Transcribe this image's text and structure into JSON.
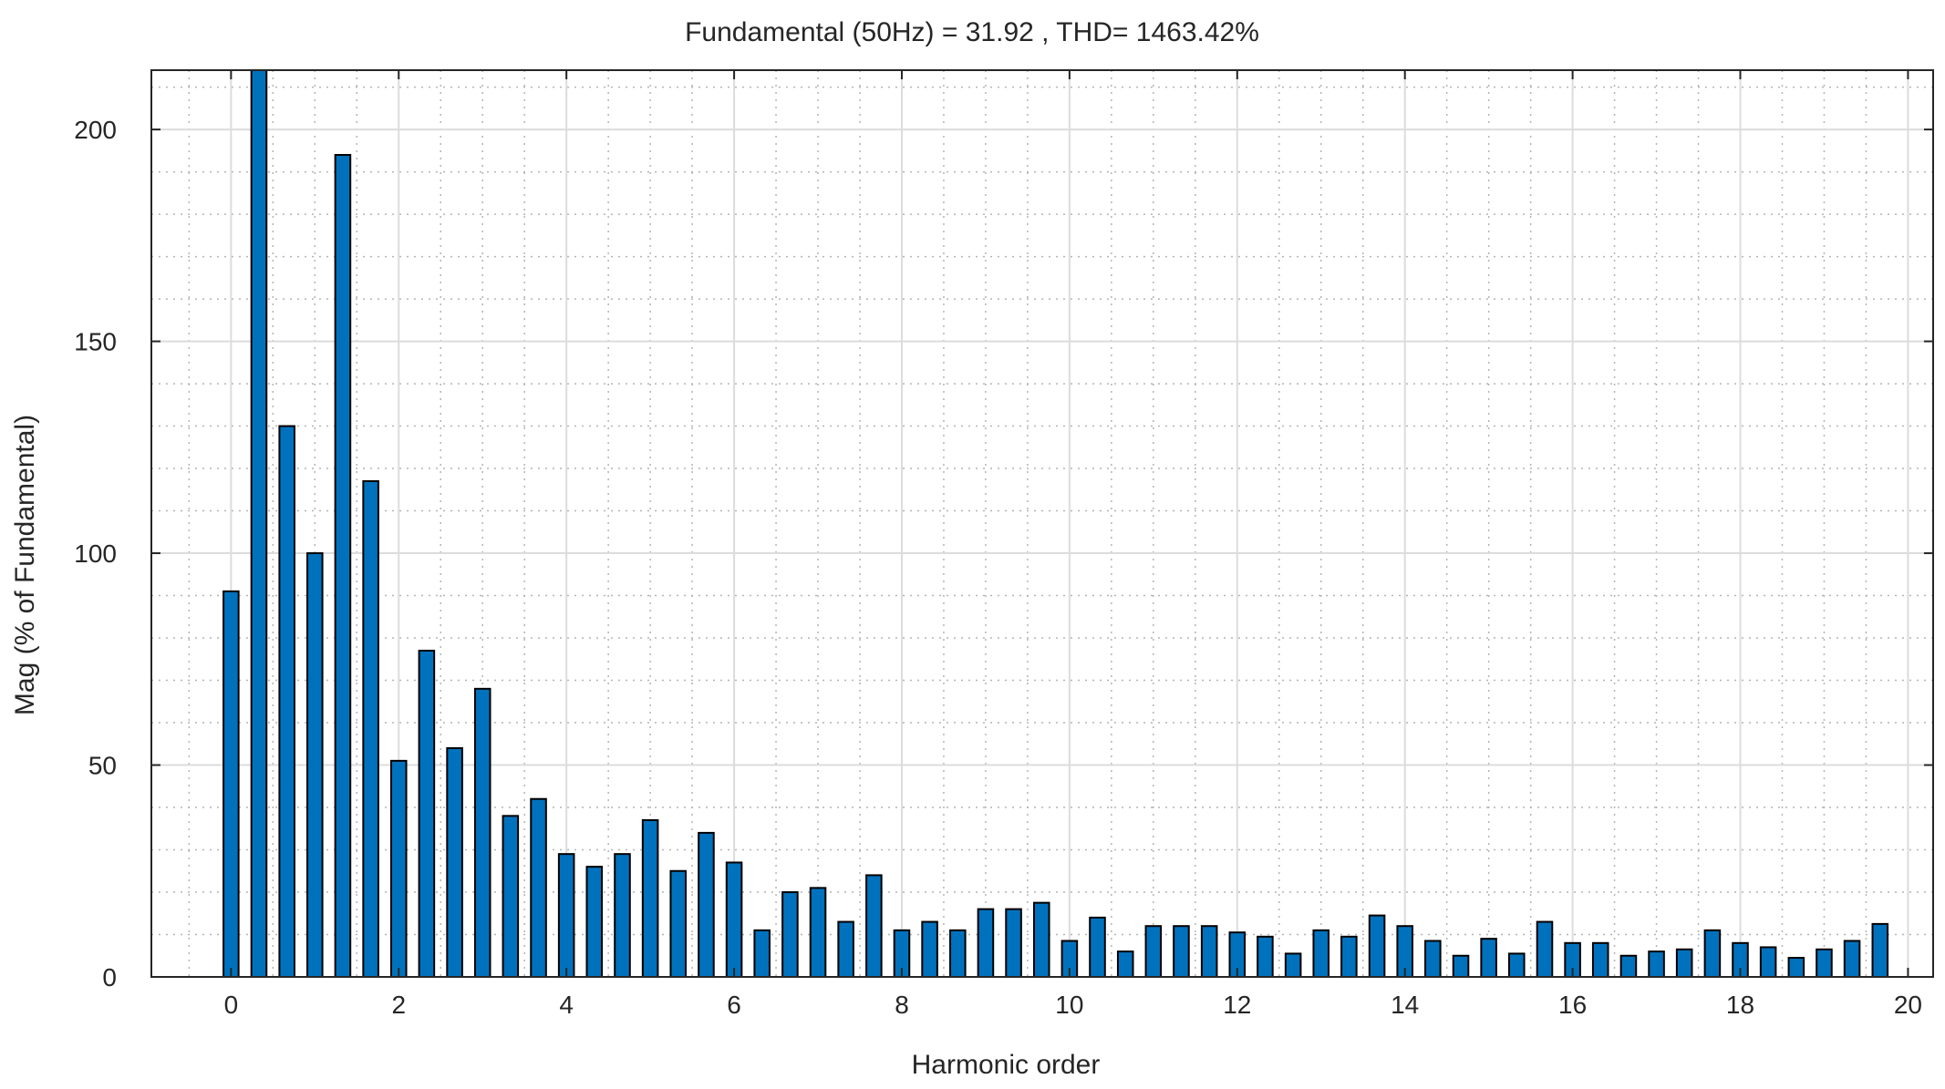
{
  "chart_data": {
    "type": "bar",
    "title": "Fundamental (50Hz) = 31.92 , THD= 1463.42%",
    "xlabel": "Harmonic order",
    "ylabel": "Mag (% of Fundamental)",
    "xlim": [
      -0.95,
      20.3
    ],
    "ylim": [
      0,
      214
    ],
    "xticks": [
      0,
      2,
      4,
      6,
      8,
      10,
      12,
      14,
      16,
      18,
      20
    ],
    "yticks": [
      0,
      50,
      100,
      150,
      200
    ],
    "grid": true,
    "bar_width": 0.18,
    "bar_color": "#0072BD",
    "bar_edge_color": "#000000",
    "x": [
      0,
      0.333,
      0.667,
      1,
      1.333,
      1.667,
      2,
      2.333,
      2.667,
      3,
      3.333,
      3.667,
      4,
      4.333,
      4.667,
      5,
      5.333,
      5.667,
      6,
      6.333,
      6.667,
      7,
      7.333,
      7.667,
      8,
      8.333,
      8.667,
      9,
      9.333,
      9.667,
      10,
      10.333,
      10.667,
      11,
      11.333,
      11.667,
      12,
      12.333,
      12.667,
      13,
      13.333,
      13.667,
      14,
      14.333,
      14.667,
      15,
      15.333,
      15.667,
      16,
      16.333,
      16.667,
      17,
      17.333,
      17.667,
      18,
      18.333,
      18.667,
      19,
      19.333,
      19.667
    ],
    "values": [
      91,
      214,
      130,
      100,
      194,
      117,
      51,
      77,
      54,
      68,
      38,
      42,
      29,
      26,
      29,
      37,
      25,
      34,
      27,
      11,
      20,
      21,
      13,
      24,
      11,
      13,
      11,
      16,
      16,
      17.5,
      8.5,
      14,
      6,
      12,
      12,
      12,
      10.5,
      9.5,
      5.5,
      11,
      9.5,
      14.5,
      12,
      8.5,
      5,
      9,
      5.5,
      13,
      8,
      8,
      5,
      6,
      6.5,
      11,
      8,
      7,
      4.5,
      6.5,
      8.5,
      12.5
    ]
  }
}
